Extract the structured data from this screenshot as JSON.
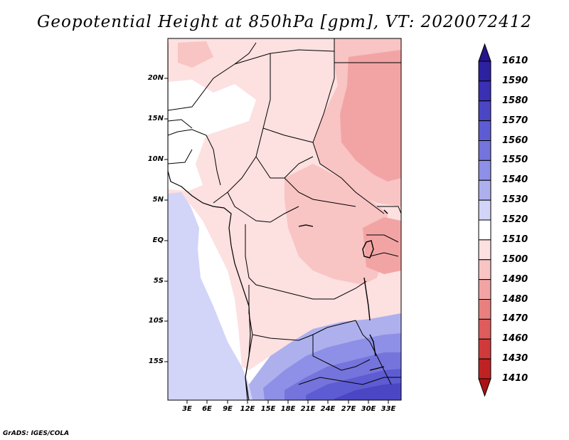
{
  "title": "Geopotential Height at 850hPa [gpm], VT: 2020072412",
  "credit": "GrADS: IGES/COLA",
  "map": {
    "lat_labels": [
      "20N",
      "15N",
      "10N",
      "5N",
      "EQ",
      "5S",
      "10S",
      "15S"
    ],
    "lon_labels": [
      "3E",
      "6E",
      "9E",
      "12E",
      "15E",
      "18E",
      "21E",
      "24E",
      "27E",
      "30E",
      "33E"
    ]
  },
  "colorbar": {
    "levels": [
      "1610",
      "1590",
      "1580",
      "1570",
      "1560",
      "1550",
      "1540",
      "1530",
      "1520",
      "1510",
      "1500",
      "1490",
      "1480",
      "1470",
      "1460",
      "1430",
      "1410"
    ],
    "colors": [
      "#26158a",
      "#2c21a0",
      "#3a30b5",
      "#4b46c4",
      "#5e5cd2",
      "#7574dc",
      "#8e8fe6",
      "#aeb0ee",
      "#d2d4f8",
      "#ffffff",
      "#fde0e0",
      "#f8c4c4",
      "#f2a4a4",
      "#e88080",
      "#de5c5c",
      "#d03a3a",
      "#bf2222",
      "#aa1414"
    ]
  }
}
